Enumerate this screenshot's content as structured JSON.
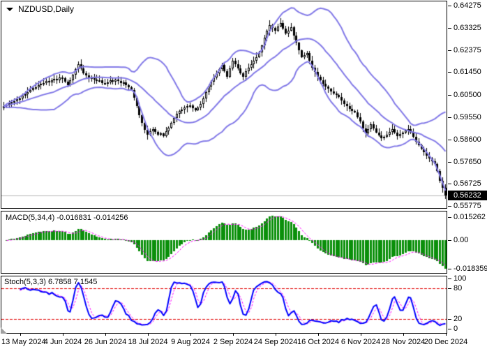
{
  "header": {
    "symbol_label": "NZDUSD,Daily"
  },
  "colors": {
    "bollinger": "#837ae8",
    "candle_outline": "#000000",
    "candle_up_fill": "#ffffff",
    "candle_down_fill": "#000000",
    "macd_bars": "#0a8f0a",
    "signal_line": "#ff00ff",
    "stoch_main": "#0000ff",
    "level_lines": "#e00000",
    "current_price_line": "#b9b9b9",
    "price_tag_bg": "#000000",
    "price_tag_text": "#ffffff"
  },
  "price_axis": {
    "labels": [
      "0.64275",
      "0.63325",
      "0.62375",
      "0.61450",
      "0.60500",
      "0.59550",
      "0.58600",
      "0.57650",
      "0.56725",
      "0.55775"
    ],
    "current": "0.56232"
  },
  "date_axis": {
    "labels": [
      "13 May 2024",
      "4 Jun 2024",
      "26 Jun 2024",
      "18 Jul 2024",
      "9 Aug 2024",
      "2 Sep 2024",
      "24 Sep 2024",
      "16 Oct 2024",
      "6 Nov 2024",
      "28 Nov 2024",
      "20 Dec 2024"
    ]
  },
  "indicators": {
    "macd": {
      "text": "MACD(5,34,4) -0.016831 -0.014256",
      "axis_labels": [
        "0.015262",
        "0.00",
        "-0.018359"
      ]
    },
    "stoch": {
      "text": "Stoch(5,3,3) 6.7858 7.1545",
      "axis_labels": [
        "100",
        "80",
        "20",
        "0"
      ]
    }
  },
  "chart_data": [
    {
      "type": "candlestick",
      "title": "NZDUSD,Daily",
      "y_axis_ticks": [
        0.64275,
        0.63325,
        0.62375,
        0.6145,
        0.605,
        0.5955,
        0.586,
        0.5765,
        0.56725,
        0.55775
      ],
      "x_tick_labels": [
        "13 May 2024",
        "4 Jun 2024",
        "26 Jun 2024",
        "18 Jul 2024",
        "9 Aug 2024",
        "2 Sep 2024",
        "24 Sep 2024",
        "16 Oct 2024",
        "6 Nov 2024",
        "28 Nov 2024",
        "20 Dec 2024"
      ],
      "overlay": {
        "name": "Bollinger Bands",
        "period": 20,
        "deviation": 2
      },
      "last_price": 0.56232,
      "closes": [
        0.6,
        0.6007,
        0.6012,
        0.6018,
        0.6022,
        0.603,
        0.6035,
        0.6045,
        0.6052,
        0.6062,
        0.607,
        0.6078,
        0.6082,
        0.609,
        0.6095,
        0.61,
        0.6108,
        0.6103,
        0.611,
        0.6118,
        0.6112,
        0.6122,
        0.612,
        0.6105,
        0.609,
        0.6112,
        0.6135,
        0.6158,
        0.618,
        0.616,
        0.614,
        0.6132,
        0.612,
        0.6124,
        0.6115,
        0.6108,
        0.6112,
        0.61,
        0.6095,
        0.6102,
        0.611,
        0.6104,
        0.6115,
        0.6108,
        0.6098,
        0.6102,
        0.609,
        0.6082,
        0.607,
        0.6038,
        0.6,
        0.5962,
        0.593,
        0.5902,
        0.588,
        0.5895,
        0.5905,
        0.5892,
        0.588,
        0.5885,
        0.5875,
        0.5895,
        0.591,
        0.593,
        0.595,
        0.5968,
        0.598,
        0.5988,
        0.5995,
        0.6,
        0.6005,
        0.5992,
        0.5985,
        0.5995,
        0.601,
        0.6035,
        0.606,
        0.6085,
        0.6105,
        0.6122,
        0.614,
        0.6158,
        0.6175,
        0.6148,
        0.6125,
        0.6162,
        0.6195,
        0.6178,
        0.616,
        0.614,
        0.6125,
        0.6148,
        0.6165,
        0.618,
        0.6195,
        0.621,
        0.623,
        0.6258,
        0.629,
        0.632,
        0.6345,
        0.6332,
        0.632,
        0.634,
        0.6355,
        0.633,
        0.631,
        0.6322,
        0.6335,
        0.63,
        0.627,
        0.6238,
        0.621,
        0.6218,
        0.6225,
        0.6195,
        0.6165,
        0.6145,
        0.6125,
        0.611,
        0.6095,
        0.6085,
        0.6075,
        0.6065,
        0.6055,
        0.6048,
        0.604,
        0.6025,
        0.601,
        0.6,
        0.599,
        0.5982,
        0.5975,
        0.5955,
        0.5935,
        0.5908,
        0.5885,
        0.5905,
        0.5925,
        0.5906,
        0.589,
        0.5876,
        0.5865,
        0.5872,
        0.588,
        0.5892,
        0.5905,
        0.589,
        0.5875,
        0.5882,
        0.589,
        0.5898,
        0.5905,
        0.5888,
        0.587,
        0.5852,
        0.5835,
        0.582,
        0.5805,
        0.5792,
        0.578,
        0.5768,
        0.5755,
        0.5725,
        0.5685,
        0.5655,
        0.56232
      ]
    },
    {
      "type": "bar",
      "name": "MACD",
      "params": [
        5,
        34,
        4
      ],
      "current_macd": -0.016831,
      "current_signal": -0.014256,
      "y_ticks": [
        0.015262,
        0,
        -0.018359
      ]
    },
    {
      "type": "line",
      "name": "Stochastic",
      "params": [
        5,
        3,
        3
      ],
      "current_k": 6.7858,
      "current_d": 7.1545,
      "y_ticks": [
        100,
        80,
        20,
        0
      ],
      "levels": [
        80,
        20
      ]
    }
  ]
}
